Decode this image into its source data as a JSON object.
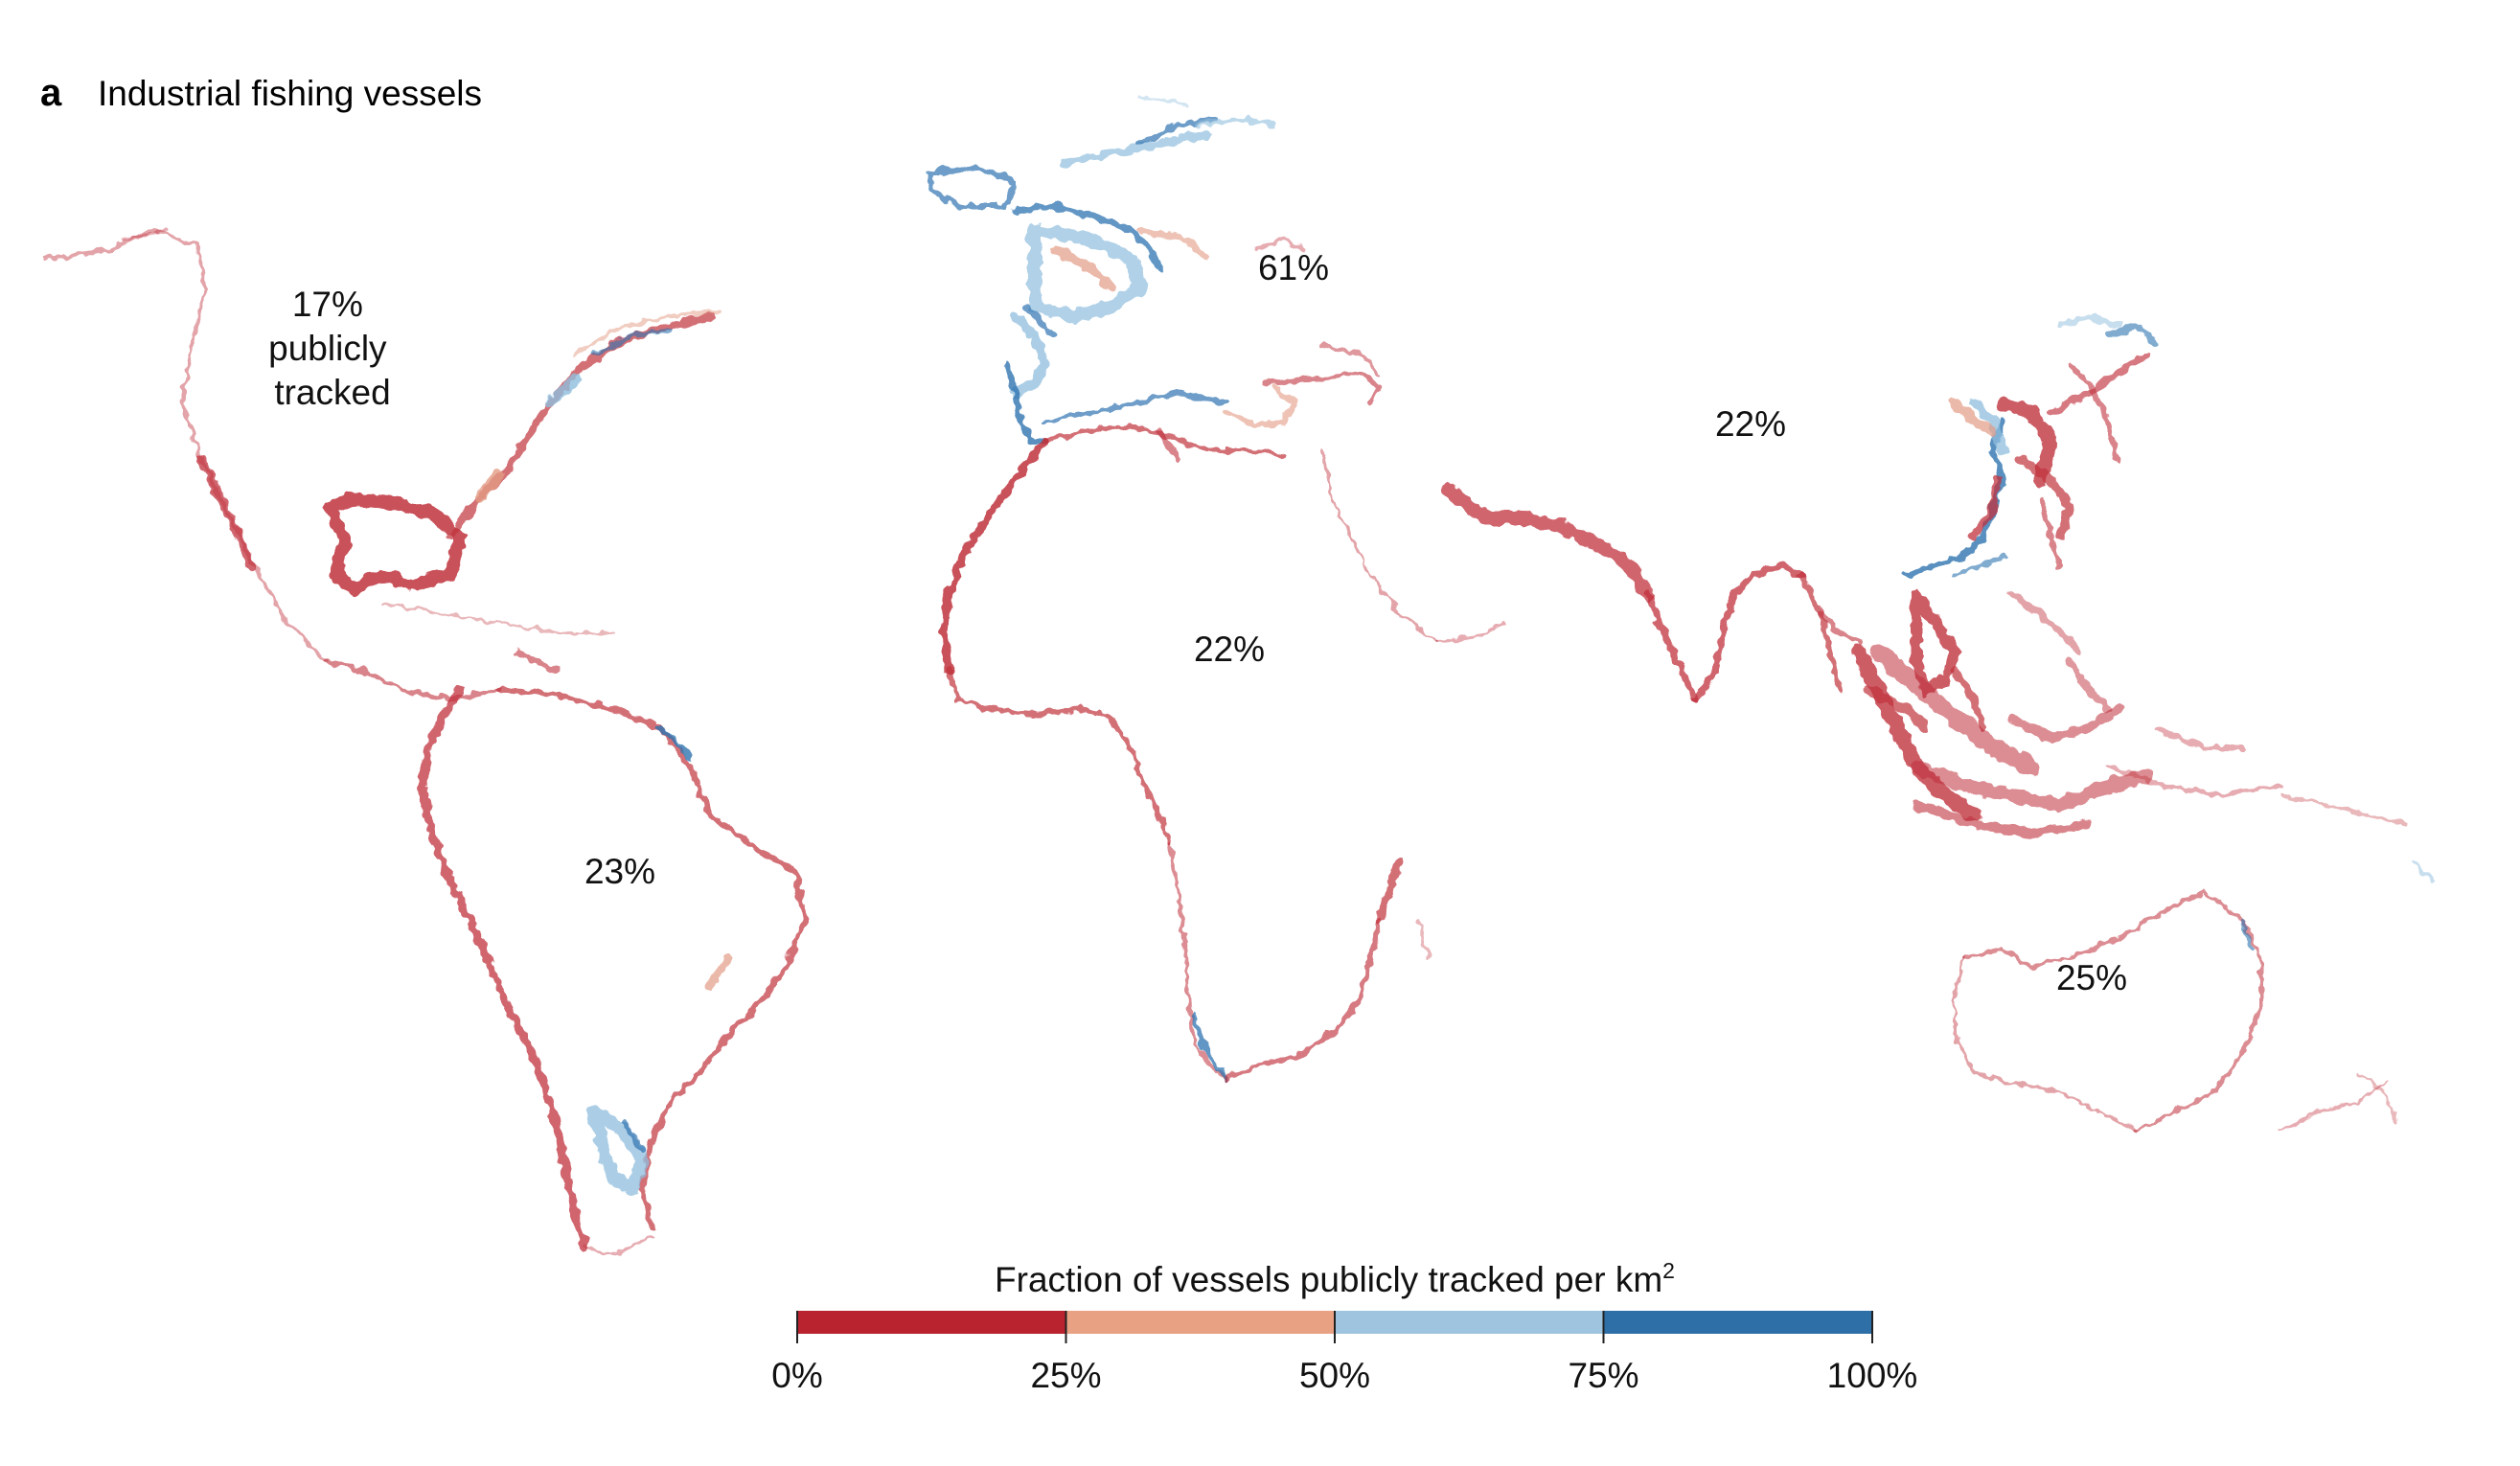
{
  "panel": {
    "letter": "a",
    "title": "Industrial fishing vessels"
  },
  "regions": [
    {
      "id": "north-america",
      "lines": [
        "17%",
        "publicly",
        "tracked"
      ],
      "value": 17
    },
    {
      "id": "europe",
      "lines": [
        "61%"
      ],
      "value": 61
    },
    {
      "id": "asia",
      "lines": [
        "22%"
      ],
      "value": 22
    },
    {
      "id": "africa",
      "lines": [
        "22%"
      ],
      "value": 22
    },
    {
      "id": "south-america",
      "lines": [
        "23%"
      ],
      "value": 23
    },
    {
      "id": "oceania",
      "lines": [
        "25%"
      ],
      "value": 25
    }
  ],
  "legend": {
    "title": "Fraction of vessels publicly tracked per km",
    "title_superscript": "2",
    "ticks": [
      "0%",
      "25%",
      "50%",
      "75%",
      "100%"
    ],
    "bins": [
      {
        "range": "0%–25%",
        "color": "#b8232f"
      },
      {
        "range": "25%–50%",
        "color": "#e8a283"
      },
      {
        "range": "50%–75%",
        "color": "#9ec4df"
      },
      {
        "range": "75%–100%",
        "color": "#2e6fa8"
      }
    ]
  },
  "colors": {
    "red": "#c0323d",
    "salmon": "#e39b84",
    "lightblue": "#8fbedd",
    "blue": "#2f74b0"
  }
}
